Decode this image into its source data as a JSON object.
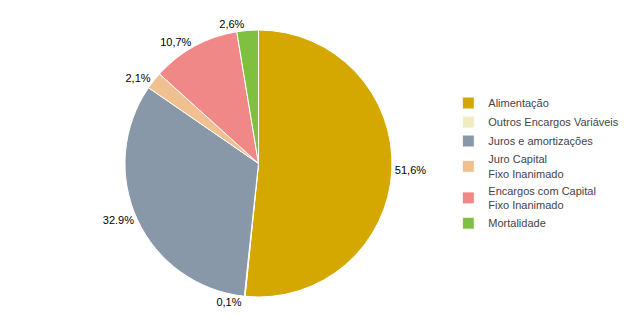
{
  "chart_data": {
    "type": "pie",
    "categories": [
      "Alimentação",
      "Outros Encargos Variáveis",
      "Juros e amortizações",
      "Juro Capital\nFixo Inanimado",
      "Encargos com Capital\nFixo Inanimado",
      "Mortalidade"
    ],
    "values": [
      51.6,
      0.1,
      32.9,
      2.1,
      10.7,
      2.6
    ],
    "value_labels": [
      "51,6%",
      "0,1%",
      "32.9%",
      "2,1%",
      "10,7%",
      "2,6%"
    ],
    "colors": [
      "#D4A800",
      "#F0ECC0",
      "#8898A8",
      "#F0C090",
      "#F08888",
      "#80C040"
    ],
    "data_labels": true,
    "legend": "right"
  }
}
